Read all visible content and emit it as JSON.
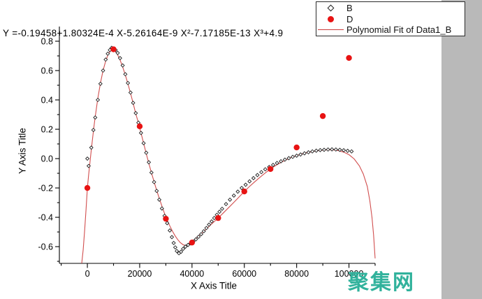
{
  "window": {
    "background": "#ffffff",
    "right_panel_color": "#b9b9b9"
  },
  "watermark": {
    "text": "聚集网",
    "color": "#31b29c"
  },
  "chart_data": {
    "type": "scatter",
    "equation": "Y =-0.19458+1.80324E-4 X-5.26164E-9 X²-7.17185E-13 X³+4.9",
    "xlabel": "X Axis Title",
    "ylabel": "Y Axis Title",
    "grid": false,
    "legend_position": "top-right",
    "axes": {
      "x": {
        "min": -10700,
        "max": 110000
      },
      "y": {
        "min": -0.714,
        "max": 0.9
      }
    },
    "x_ticks": {
      "major": [
        0,
        20000,
        40000,
        60000,
        80000,
        100000
      ],
      "labels": [
        "0",
        "20000",
        "40000",
        "60000",
        "80000",
        "100000"
      ],
      "minor": [
        -10000,
        10000,
        30000,
        50000,
        70000,
        90000,
        110000
      ]
    },
    "y_ticks": {
      "major": [
        0.8,
        0.6,
        0.4,
        0.2,
        0.0,
        -0.2,
        -0.4,
        -0.6
      ],
      "labels": [
        "0.8",
        "0.6",
        "0.4",
        "0.2",
        "0.0",
        "-0.2",
        "-0.4",
        "-0.6"
      ],
      "minor": [
        0.7,
        0.5,
        0.3,
        0.1,
        -0.1,
        -0.3,
        -0.5,
        -0.7
      ]
    },
    "legend": {
      "items": [
        {
          "symbol": "open-diamond",
          "label": "B"
        },
        {
          "symbol": "filled-circle",
          "label": "D"
        },
        {
          "symbol": "line",
          "label": "Polynomial Fit of Data1_B"
        }
      ]
    },
    "series": [
      {
        "name": "B",
        "marker": "open-diamond",
        "color": "#1f1f1f",
        "points": [
          [
            0,
            0.0
          ],
          [
            500,
            -0.05
          ],
          [
            1500,
            0.075
          ],
          [
            2300,
            0.195
          ],
          [
            3000,
            0.28
          ],
          [
            4000,
            0.4
          ],
          [
            5000,
            0.51
          ],
          [
            6000,
            0.6
          ],
          [
            7000,
            0.675
          ],
          [
            7800,
            0.715
          ],
          [
            8600,
            0.74
          ],
          [
            9300,
            0.755
          ],
          [
            10000,
            0.75
          ],
          [
            10800,
            0.74
          ],
          [
            11600,
            0.72
          ],
          [
            12500,
            0.685
          ],
          [
            13500,
            0.635
          ],
          [
            14500,
            0.575
          ],
          [
            15500,
            0.515
          ],
          [
            16500,
            0.45
          ],
          [
            17500,
            0.38
          ],
          [
            18500,
            0.31
          ],
          [
            19500,
            0.245
          ],
          [
            20500,
            0.175
          ],
          [
            21500,
            0.105
          ],
          [
            22500,
            0.04
          ],
          [
            23500,
            -0.025
          ],
          [
            24500,
            -0.095
          ],
          [
            25500,
            -0.16
          ],
          [
            26500,
            -0.22
          ],
          [
            27500,
            -0.28
          ],
          [
            28500,
            -0.34
          ],
          [
            29500,
            -0.39
          ],
          [
            30500,
            -0.44
          ],
          [
            31500,
            -0.49
          ],
          [
            32300,
            -0.535
          ],
          [
            33000,
            -0.575
          ],
          [
            33600,
            -0.605
          ],
          [
            34200,
            -0.63
          ],
          [
            35000,
            -0.645
          ],
          [
            35800,
            -0.635
          ],
          [
            36600,
            -0.615
          ],
          [
            37500,
            -0.6
          ],
          [
            38500,
            -0.588
          ],
          [
            39500,
            -0.578
          ],
          [
            40500,
            -0.565
          ],
          [
            41500,
            -0.55
          ],
          [
            42500,
            -0.533
          ],
          [
            43500,
            -0.515
          ],
          [
            44500,
            -0.495
          ],
          [
            45500,
            -0.473
          ],
          [
            46500,
            -0.45
          ],
          [
            47500,
            -0.428
          ],
          [
            48500,
            -0.405
          ],
          [
            49500,
            -0.383
          ],
          [
            50500,
            -0.362
          ],
          [
            51500,
            -0.342
          ],
          [
            53000,
            -0.31
          ],
          [
            54500,
            -0.28
          ],
          [
            56000,
            -0.252
          ],
          [
            57500,
            -0.225
          ],
          [
            59000,
            -0.2
          ],
          [
            60500,
            -0.178
          ],
          [
            62000,
            -0.155
          ],
          [
            63500,
            -0.133
          ],
          [
            65000,
            -0.112
          ],
          [
            66500,
            -0.092
          ],
          [
            68000,
            -0.073
          ],
          [
            69500,
            -0.057
          ],
          [
            71000,
            -0.043
          ],
          [
            72500,
            -0.03
          ],
          [
            74000,
            -0.018
          ],
          [
            75500,
            -0.007
          ],
          [
            77000,
            0.003
          ],
          [
            78500,
            0.012
          ],
          [
            80000,
            0.02
          ],
          [
            81500,
            0.028
          ],
          [
            83000,
            0.036
          ],
          [
            84500,
            0.043
          ],
          [
            86000,
            0.049
          ],
          [
            87500,
            0.054
          ],
          [
            89000,
            0.058
          ],
          [
            90500,
            0.06
          ],
          [
            92000,
            0.062
          ],
          [
            93500,
            0.063
          ],
          [
            95000,
            0.062
          ],
          [
            96500,
            0.06
          ],
          [
            98000,
            0.057
          ],
          [
            99500,
            0.053
          ],
          [
            101000,
            0.049
          ]
        ]
      },
      {
        "name": "D",
        "marker": "filled-circle",
        "color": "#e81313",
        "points": [
          [
            0,
            -0.2
          ],
          [
            10000,
            0.745
          ],
          [
            20000,
            0.22
          ],
          [
            30000,
            -0.41
          ],
          [
            40000,
            -0.572
          ],
          [
            50000,
            -0.405
          ],
          [
            60000,
            -0.224
          ],
          [
            70000,
            -0.071
          ],
          [
            80000,
            0.076
          ],
          [
            90000,
            0.29
          ],
          [
            100000,
            0.686
          ]
        ]
      },
      {
        "name": "Polynomial Fit of Data1_B",
        "type": "line",
        "color": "#cc3b3b",
        "points": [
          [
            -2150,
            -0.714
          ],
          [
            -1600,
            -0.62
          ],
          [
            -1000,
            -0.48
          ],
          [
            -500,
            -0.345
          ],
          [
            0,
            -0.2
          ],
          [
            500,
            -0.11
          ],
          [
            1000,
            -0.025
          ],
          [
            1500,
            0.06
          ],
          [
            2000,
            0.14
          ],
          [
            2500,
            0.215
          ],
          [
            3000,
            0.285
          ],
          [
            4000,
            0.41
          ],
          [
            5000,
            0.515
          ],
          [
            6000,
            0.6
          ],
          [
            7000,
            0.665
          ],
          [
            8000,
            0.713
          ],
          [
            9000,
            0.737
          ],
          [
            9800,
            0.74
          ],
          [
            10600,
            0.732
          ],
          [
            11500,
            0.71
          ],
          [
            12500,
            0.672
          ],
          [
            13500,
            0.625
          ],
          [
            14500,
            0.57
          ],
          [
            15500,
            0.51
          ],
          [
            16500,
            0.445
          ],
          [
            17500,
            0.377
          ],
          [
            18500,
            0.307
          ],
          [
            19500,
            0.245
          ],
          [
            20500,
            0.175
          ],
          [
            21500,
            0.105
          ],
          [
            22500,
            0.035
          ],
          [
            23500,
            -0.033
          ],
          [
            24500,
            -0.097
          ],
          [
            25500,
            -0.158
          ],
          [
            26500,
            -0.217
          ],
          [
            27500,
            -0.272
          ],
          [
            28500,
            -0.324
          ],
          [
            29500,
            -0.373
          ],
          [
            30500,
            -0.418
          ],
          [
            31500,
            -0.458
          ],
          [
            32500,
            -0.494
          ],
          [
            33500,
            -0.525
          ],
          [
            34500,
            -0.551
          ],
          [
            35500,
            -0.572
          ],
          [
            36500,
            -0.586
          ],
          [
            37500,
            -0.592
          ],
          [
            38500,
            -0.589
          ],
          [
            39200,
            -0.582
          ],
          [
            40000,
            -0.571
          ],
          [
            42000,
            -0.538
          ],
          [
            44000,
            -0.505
          ],
          [
            46000,
            -0.471
          ],
          [
            48000,
            -0.438
          ],
          [
            50000,
            -0.405
          ],
          [
            52000,
            -0.37
          ],
          [
            54000,
            -0.334
          ],
          [
            56000,
            -0.298
          ],
          [
            58000,
            -0.261
          ],
          [
            60000,
            -0.224
          ],
          [
            62000,
            -0.19
          ],
          [
            64000,
            -0.158
          ],
          [
            66000,
            -0.127
          ],
          [
            68000,
            -0.098
          ],
          [
            70000,
            -0.071
          ],
          [
            72000,
            -0.047
          ],
          [
            74000,
            -0.026
          ],
          [
            76000,
            -0.008
          ],
          [
            78000,
            0.008
          ],
          [
            80000,
            0.021
          ],
          [
            82000,
            0.032
          ],
          [
            84000,
            0.041
          ],
          [
            86000,
            0.048
          ],
          [
            88000,
            0.054
          ],
          [
            90000,
            0.058
          ],
          [
            92000,
            0.06
          ],
          [
            94000,
            0.059
          ],
          [
            96000,
            0.054
          ],
          [
            98000,
            0.044
          ],
          [
            100000,
            0.027
          ],
          [
            102000,
            -0.002
          ],
          [
            104000,
            -0.05
          ],
          [
            105500,
            -0.105
          ],
          [
            107000,
            -0.19
          ],
          [
            108000,
            -0.29
          ],
          [
            108800,
            -0.4
          ],
          [
            109400,
            -0.52
          ],
          [
            109800,
            -0.63
          ],
          [
            110000,
            -0.68
          ]
        ]
      }
    ]
  }
}
